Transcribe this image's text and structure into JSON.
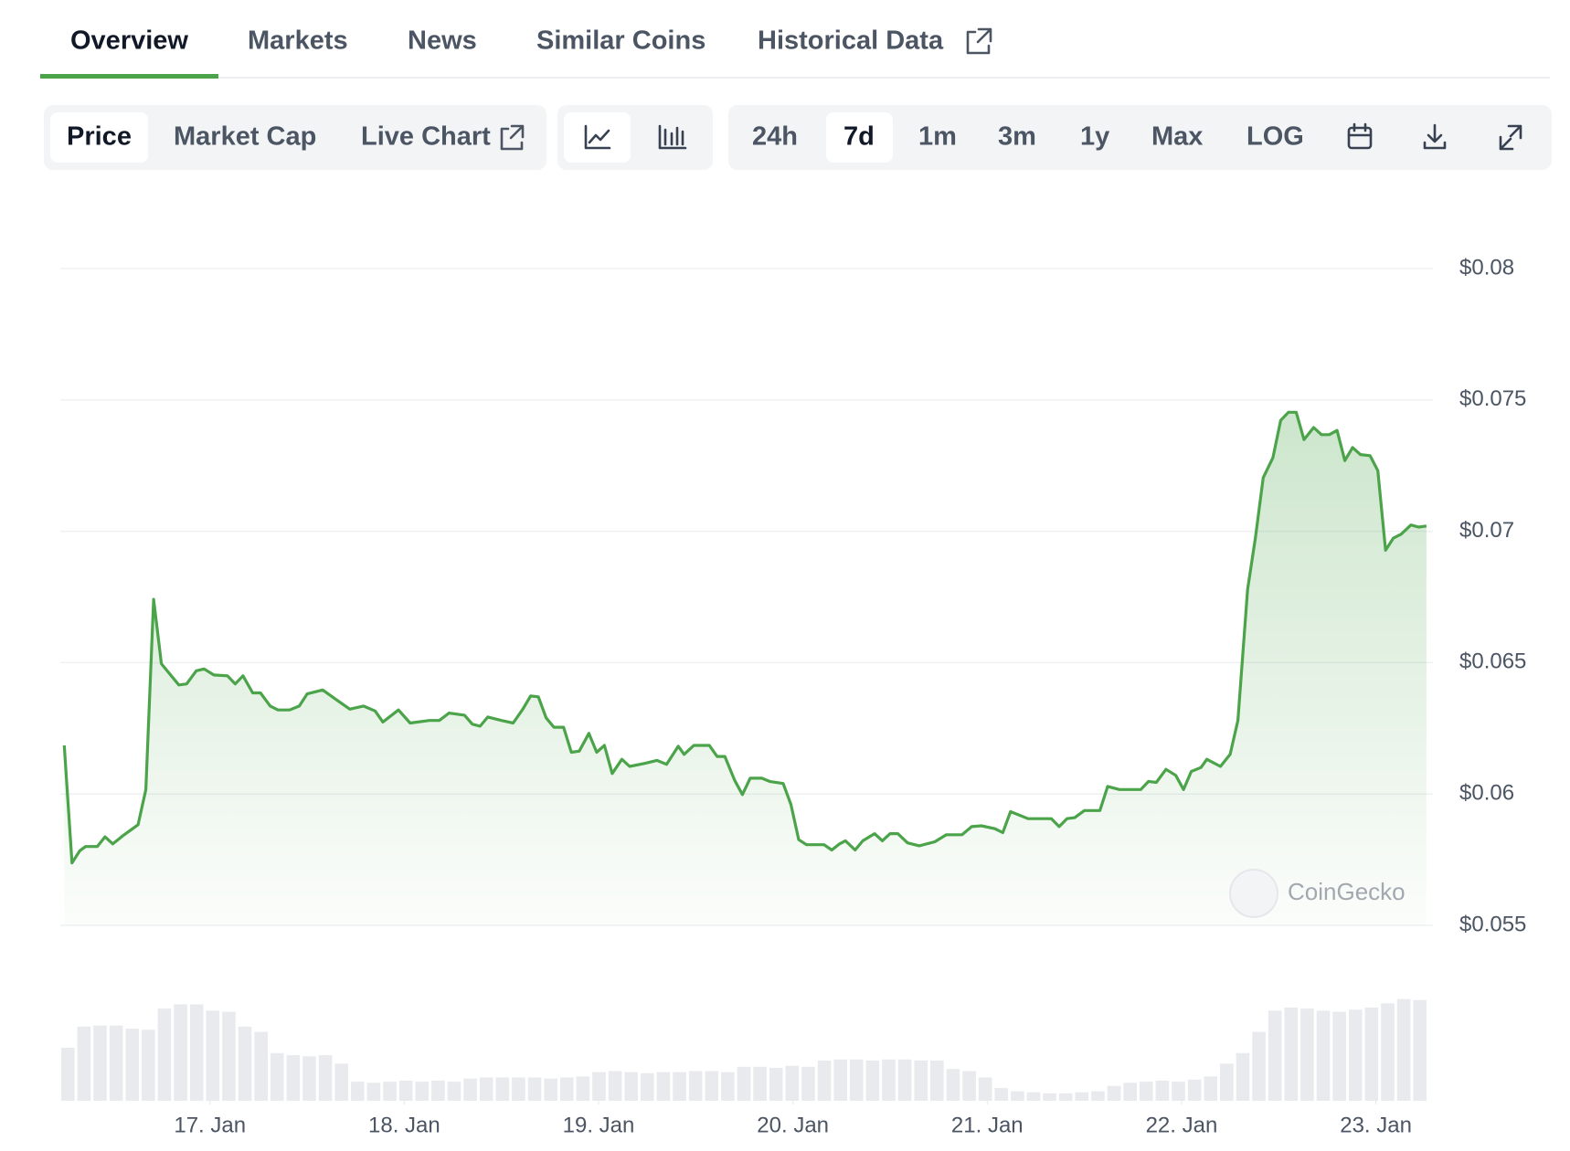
{
  "tabs": [
    "Overview",
    "Markets",
    "News",
    "Similar Coins",
    "Historical Data"
  ],
  "toolbar": {
    "views": [
      "Price",
      "Market Cap",
      "Live Chart"
    ],
    "ranges": [
      "24h",
      "7d",
      "1m",
      "3m",
      "1y",
      "Max",
      "LOG"
    ]
  },
  "watermark": "CoinGecko",
  "chart_data": {
    "type": "line",
    "color": "#4ba34a",
    "grid": true,
    "xlim": [
      16.23,
      23.27
    ],
    "xticks": [
      {
        "value": 17,
        "label": "17. Jan"
      },
      {
        "value": 18,
        "label": "18. Jan"
      },
      {
        "value": 19,
        "label": "19. Jan"
      },
      {
        "value": 20,
        "label": "20. Jan"
      },
      {
        "value": 21,
        "label": "21. Jan"
      },
      {
        "value": 22,
        "label": "22. Jan"
      },
      {
        "value": 23,
        "label": "23. Jan"
      }
    ],
    "ylim": [
      0.055,
      0.08
    ],
    "yticks": [
      {
        "value": 0.055,
        "label": "$0.055"
      },
      {
        "value": 0.06,
        "label": "$0.06"
      },
      {
        "value": 0.065,
        "label": "$0.065"
      },
      {
        "value": 0.07,
        "label": "$0.07"
      },
      {
        "value": 0.075,
        "label": "$0.075"
      },
      {
        "value": 0.08,
        "label": "$0.08"
      }
    ],
    "x": [
      16.25,
      16.29,
      16.33,
      16.36,
      16.42,
      16.46,
      16.5,
      16.55,
      16.63,
      16.67,
      16.71,
      16.75,
      16.84,
      16.88,
      16.93,
      16.97,
      17.02,
      17.09,
      17.13,
      17.17,
      17.22,
      17.26,
      17.31,
      17.35,
      17.41,
      17.46,
      17.5,
      17.58,
      17.66,
      17.72,
      17.79,
      17.85,
      17.89,
      17.97,
      18.03,
      18.13,
      18.18,
      18.23,
      18.31,
      18.35,
      18.39,
      18.43,
      18.5,
      18.56,
      18.61,
      18.65,
      18.69,
      18.73,
      18.77,
      18.82,
      18.86,
      18.9,
      18.95,
      18.99,
      19.03,
      19.07,
      19.12,
      19.16,
      19.24,
      19.3,
      19.35,
      19.41,
      19.44,
      19.49,
      19.57,
      19.61,
      19.65,
      19.7,
      19.74,
      19.78,
      19.84,
      19.88,
      19.95,
      19.99,
      20.03,
      20.07,
      20.16,
      20.2,
      20.24,
      20.27,
      20.32,
      20.36,
      20.42,
      20.46,
      20.5,
      20.54,
      20.59,
      20.65,
      20.73,
      20.79,
      20.87,
      20.92,
      20.97,
      21.04,
      21.08,
      21.12,
      21.21,
      21.33,
      21.37,
      21.41,
      21.45,
      21.5,
      21.58,
      21.62,
      21.68,
      21.79,
      21.83,
      21.87,
      21.92,
      21.97,
      22.01,
      22.05,
      22.1,
      22.13,
      22.2,
      22.25,
      22.29,
      22.34,
      22.38,
      22.42,
      22.47,
      22.51,
      22.55,
      22.59,
      22.63,
      22.68,
      22.72,
      22.76,
      22.8,
      22.84,
      22.88,
      22.92,
      22.97,
      23.01,
      23.05,
      23.09,
      23.13,
      23.18,
      23.22,
      23.26
    ],
    "values": [
      0.06185,
      0.05738,
      0.05784,
      0.058,
      0.058,
      0.05837,
      0.0581,
      0.0584,
      0.05883,
      0.06017,
      0.06741,
      0.06496,
      0.06415,
      0.06419,
      0.06469,
      0.06476,
      0.06453,
      0.0645,
      0.06419,
      0.0645,
      0.06385,
      0.06385,
      0.06335,
      0.0632,
      0.0632,
      0.06335,
      0.06381,
      0.06396,
      0.06354,
      0.06323,
      0.06335,
      0.06316,
      0.06274,
      0.0632,
      0.0627,
      0.0628,
      0.0628,
      0.06308,
      0.063,
      0.06266,
      0.06258,
      0.06293,
      0.0628,
      0.0627,
      0.06323,
      0.06373,
      0.0637,
      0.0629,
      0.06254,
      0.06254,
      0.06159,
      0.06163,
      0.06231,
      0.06159,
      0.06185,
      0.06078,
      0.06132,
      0.06105,
      0.06117,
      0.06128,
      0.06113,
      0.06182,
      0.06151,
      0.06185,
      0.06185,
      0.06143,
      0.06143,
      0.06052,
      0.05998,
      0.0606,
      0.0606,
      0.06048,
      0.0604,
      0.0596,
      0.05826,
      0.05807,
      0.05807,
      0.05787,
      0.0581,
      0.05822,
      0.05787,
      0.05822,
      0.05849,
      0.05822,
      0.05849,
      0.05849,
      0.05814,
      0.05803,
      0.05818,
      0.05845,
      0.05845,
      0.05876,
      0.05879,
      0.05868,
      0.05853,
      0.05933,
      0.05906,
      0.05906,
      0.05876,
      0.05906,
      0.0591,
      0.05937,
      0.05937,
      0.06029,
      0.06017,
      0.06017,
      0.06048,
      0.06044,
      0.06094,
      0.06071,
      0.06017,
      0.06086,
      0.06101,
      0.06132,
      0.06105,
      0.06151,
      0.0628,
      0.06779,
      0.06974,
      0.07204,
      0.0728,
      0.07422,
      0.07453,
      0.07453,
      0.07349,
      0.07395,
      0.07368,
      0.07368,
      0.07384,
      0.07269,
      0.07319,
      0.07292,
      0.07288,
      0.07231,
      0.06928,
      0.06974,
      0.06989,
      0.07024,
      0.07016,
      0.0702
    ],
    "volume": {
      "color": "#e9eaed",
      "values": [
        50,
        70,
        71,
        71,
        68,
        67,
        87,
        91,
        91,
        85,
        84,
        70,
        65,
        45,
        43,
        42,
        43,
        35,
        18,
        17,
        18,
        19,
        18,
        19,
        18,
        21,
        22,
        22,
        22,
        22,
        21,
        22,
        23,
        27,
        28,
        27,
        26,
        27,
        27,
        28,
        28,
        27,
        32,
        32,
        31,
        33,
        32,
        38,
        39,
        39,
        38,
        39,
        39,
        38,
        38,
        30,
        28,
        22,
        12,
        9,
        8,
        7,
        7,
        8,
        9,
        14,
        17,
        18,
        19,
        18,
        20,
        23,
        35,
        45,
        65,
        85,
        88,
        87,
        85,
        84,
        86,
        88,
        92,
        96,
        95
      ]
    }
  }
}
